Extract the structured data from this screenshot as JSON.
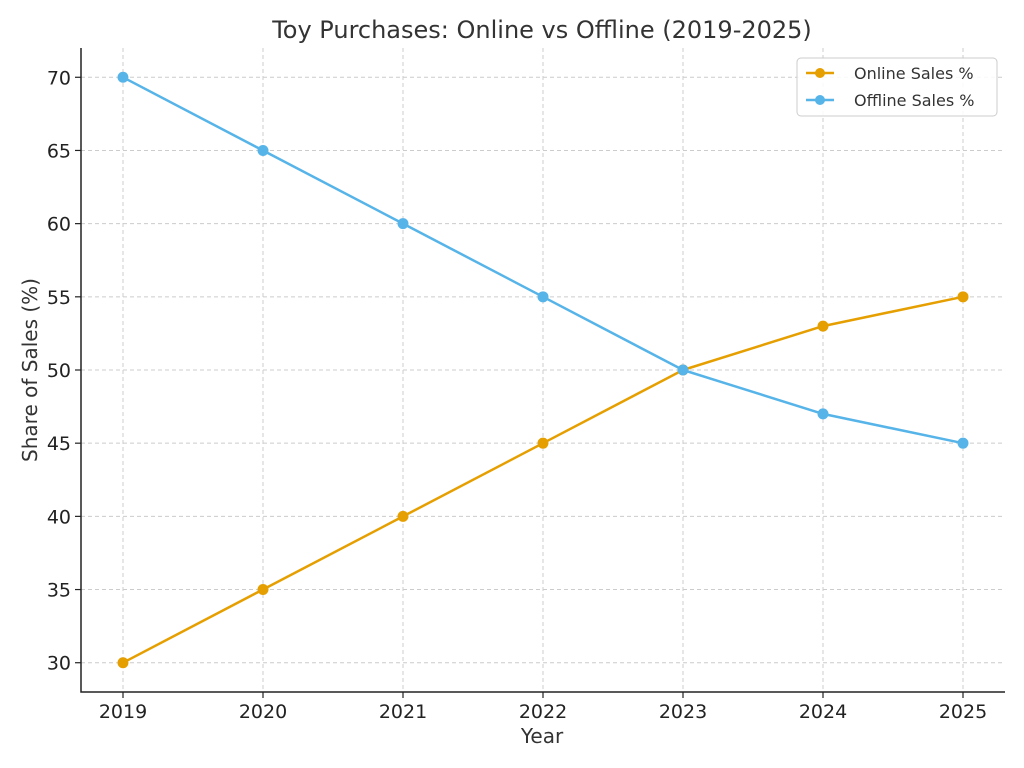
{
  "chart_data": {
    "type": "line",
    "title": "Toy Purchases: Online vs Offline (2019-2025)",
    "xlabel": "Year",
    "ylabel": "Share of Sales (%)",
    "x": [
      "2019",
      "2020",
      "2021",
      "2022",
      "2023",
      "2024",
      "2025"
    ],
    "ylim": [
      28,
      72
    ],
    "yticks": [
      30,
      35,
      40,
      45,
      50,
      55,
      60,
      65,
      70
    ],
    "grid": true,
    "legend_position": "top-right",
    "series": [
      {
        "name": "Online Sales %",
        "color": "#E69F00",
        "marker": "circle",
        "values": [
          30,
          35,
          40,
          45,
          50,
          53,
          55
        ]
      },
      {
        "name": "Offline Sales %",
        "color": "#56B4E9",
        "marker": "circle",
        "values": [
          70,
          65,
          60,
          55,
          50,
          47,
          45
        ]
      }
    ]
  }
}
